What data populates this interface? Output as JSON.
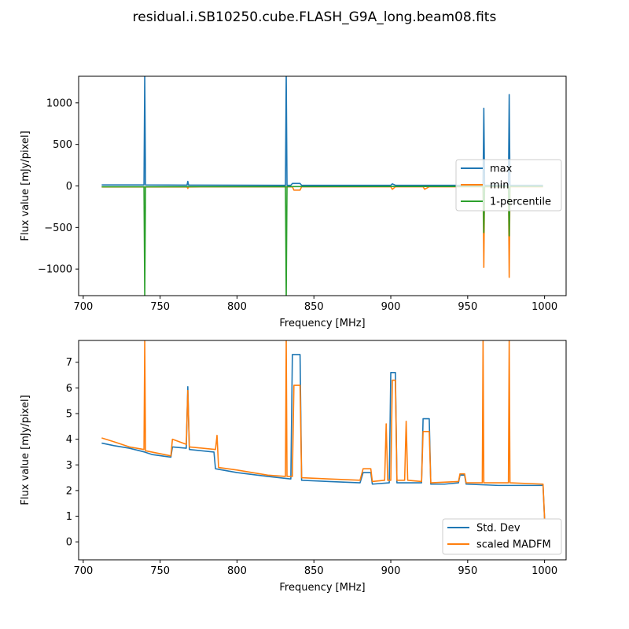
{
  "figure": {
    "suptitle": "residual.i.SB10250.cube.FLASH_G9A_long.beam08.fits"
  },
  "chart_data": [
    {
      "type": "line",
      "xlabel": "Frequency [MHz]",
      "ylabel": "Flux value [mJy/pixel]",
      "xlim": [
        697,
        1014
      ],
      "ylim": [
        -1320,
        1320
      ],
      "xticks": [
        700,
        750,
        800,
        850,
        900,
        950,
        1000
      ],
      "yticks": [
        -1000,
        -500,
        0,
        500,
        1000
      ],
      "xtick_labels": [
        "700",
        "750",
        "800",
        "850",
        "900",
        "950",
        "1000"
      ],
      "ytick_labels": [
        "−1000",
        "−500",
        "0",
        "500",
        "1000"
      ],
      "legend_position": "center-right",
      "series": [
        {
          "name": "max",
          "color": "#1f77b4",
          "points": [
            [
              712,
              12
            ],
            [
              739.5,
              12
            ],
            [
              740,
              1350
            ],
            [
              740.5,
              12
            ],
            [
              767.5,
              10
            ],
            [
              768,
              55
            ],
            [
              768.5,
              10
            ],
            [
              831.5,
              8
            ],
            [
              832,
              1350
            ],
            [
              832.5,
              8
            ],
            [
              835,
              8
            ],
            [
              836,
              30
            ],
            [
              841,
              30
            ],
            [
              842,
              8
            ],
            [
              900,
              8
            ],
            [
              901,
              25
            ],
            [
              903,
              8
            ],
            [
              960,
              8
            ],
            [
              960.5,
              935
            ],
            [
              961,
              8
            ],
            [
              976.5,
              8
            ],
            [
              977,
              1100
            ],
            [
              977.5,
              8
            ],
            [
              999,
              8
            ]
          ]
        },
        {
          "name": "min",
          "color": "#ff7f0e",
          "points": [
            [
              712,
              -12
            ],
            [
              767.5,
              -12
            ],
            [
              768,
              -30
            ],
            [
              768.5,
              -12
            ],
            [
              836,
              -10
            ],
            [
              837,
              -50
            ],
            [
              841,
              -50
            ],
            [
              842,
              -10
            ],
            [
              900,
              -10
            ],
            [
              901,
              -40
            ],
            [
              903,
              -10
            ],
            [
              921,
              -10
            ],
            [
              922,
              -40
            ],
            [
              925,
              -10
            ],
            [
              960,
              -10
            ],
            [
              960.5,
              -980
            ],
            [
              961,
              -10
            ],
            [
              976.5,
              -10
            ],
            [
              977,
              -1100
            ],
            [
              977.5,
              -10
            ],
            [
              999,
              -10
            ]
          ]
        },
        {
          "name": "1-percentile",
          "color": "#2ca02c",
          "points": [
            [
              712,
              -10
            ],
            [
              739.5,
              -10
            ],
            [
              740,
              -1350
            ],
            [
              740.5,
              -10
            ],
            [
              831.5,
              -8
            ],
            [
              832,
              -1350
            ],
            [
              832.5,
              -8
            ],
            [
              960,
              -5
            ],
            [
              960.5,
              -560
            ],
            [
              961,
              -5
            ],
            [
              976.5,
              -5
            ],
            [
              977,
              -600
            ],
            [
              977.5,
              -5
            ],
            [
              999,
              -5
            ]
          ]
        }
      ]
    },
    {
      "type": "line",
      "xlabel": "Frequency [MHz]",
      "ylabel": "Flux value [mJy/pixel]",
      "xlim": [
        697,
        1014
      ],
      "ylim": [
        -0.7,
        7.85
      ],
      "xticks": [
        700,
        750,
        800,
        850,
        900,
        950,
        1000
      ],
      "yticks": [
        0,
        1,
        2,
        3,
        4,
        5,
        6,
        7
      ],
      "xtick_labels": [
        "700",
        "750",
        "800",
        "850",
        "900",
        "950",
        "1000"
      ],
      "ytick_labels": [
        "0",
        "1",
        "2",
        "3",
        "4",
        "5",
        "6",
        "7"
      ],
      "legend_position": "lower-right",
      "series": [
        {
          "name": "Std. Dev",
          "color": "#1f77b4",
          "points": [
            [
              712,
              3.85
            ],
            [
              720,
              3.75
            ],
            [
              730,
              3.65
            ],
            [
              740,
              3.5
            ],
            [
              745,
              3.4
            ],
            [
              757,
              3.3
            ],
            [
              758,
              3.7
            ],
            [
              767,
              3.65
            ],
            [
              768,
              6.05
            ],
            [
              769,
              3.6
            ],
            [
              785,
              3.5
            ],
            [
              786,
              2.85
            ],
            [
              800,
              2.7
            ],
            [
              820,
              2.55
            ],
            [
              835,
              2.45
            ],
            [
              836,
              7.3
            ],
            [
              841,
              7.3
            ],
            [
              842,
              2.4
            ],
            [
              860,
              2.35
            ],
            [
              880,
              2.3
            ],
            [
              882,
              2.7
            ],
            [
              887,
              2.7
            ],
            [
              888,
              2.25
            ],
            [
              899,
              2.3
            ],
            [
              900,
              6.6
            ],
            [
              903,
              6.6
            ],
            [
              904,
              2.3
            ],
            [
              920,
              2.3
            ],
            [
              921,
              4.8
            ],
            [
              925,
              4.8
            ],
            [
              926,
              2.25
            ],
            [
              935,
              2.25
            ],
            [
              944,
              2.3
            ],
            [
              945,
              2.6
            ],
            [
              948,
              2.6
            ],
            [
              949,
              2.25
            ],
            [
              970,
              2.2
            ],
            [
              999,
              2.2
            ],
            [
              1000,
              0.9
            ]
          ]
        },
        {
          "name": "scaled MADFM",
          "color": "#ff7f0e",
          "points": [
            [
              712,
              4.05
            ],
            [
              720,
              3.9
            ],
            [
              730,
              3.7
            ],
            [
              739.5,
              3.6
            ],
            [
              740,
              7.9
            ],
            [
              740.5,
              3.55
            ],
            [
              757,
              3.35
            ],
            [
              758,
              4.0
            ],
            [
              767,
              3.8
            ],
            [
              768,
              5.9
            ],
            [
              769,
              3.7
            ],
            [
              786,
              3.6
            ],
            [
              787,
              4.15
            ],
            [
              788,
              2.9
            ],
            [
              800,
              2.8
            ],
            [
              820,
              2.6
            ],
            [
              831.5,
              2.55
            ],
            [
              832,
              7.9
            ],
            [
              832.5,
              2.55
            ],
            [
              836,
              2.55
            ],
            [
              837,
              6.1
            ],
            [
              841,
              6.1
            ],
            [
              842,
              2.5
            ],
            [
              860,
              2.45
            ],
            [
              880,
              2.4
            ],
            [
              882,
              2.85
            ],
            [
              887,
              2.85
            ],
            [
              888,
              2.35
            ],
            [
              896,
              2.4
            ],
            [
              897,
              4.6
            ],
            [
              898,
              2.4
            ],
            [
              900,
              2.4
            ],
            [
              901,
              6.3
            ],
            [
              903,
              6.3
            ],
            [
              904,
              2.4
            ],
            [
              909,
              2.4
            ],
            [
              910,
              4.7
            ],
            [
              911,
              2.4
            ],
            [
              920,
              2.35
            ],
            [
              921,
              4.3
            ],
            [
              925,
              4.3
            ],
            [
              926,
              2.3
            ],
            [
              944,
              2.35
            ],
            [
              945,
              2.65
            ],
            [
              948,
              2.65
            ],
            [
              949,
              2.3
            ],
            [
              959.5,
              2.3
            ],
            [
              960,
              7.9
            ],
            [
              960.5,
              2.3
            ],
            [
              976.5,
              2.3
            ],
            [
              977,
              7.9
            ],
            [
              977.5,
              2.3
            ],
            [
              999,
              2.25
            ],
            [
              1000,
              0.9
            ]
          ]
        }
      ]
    }
  ]
}
